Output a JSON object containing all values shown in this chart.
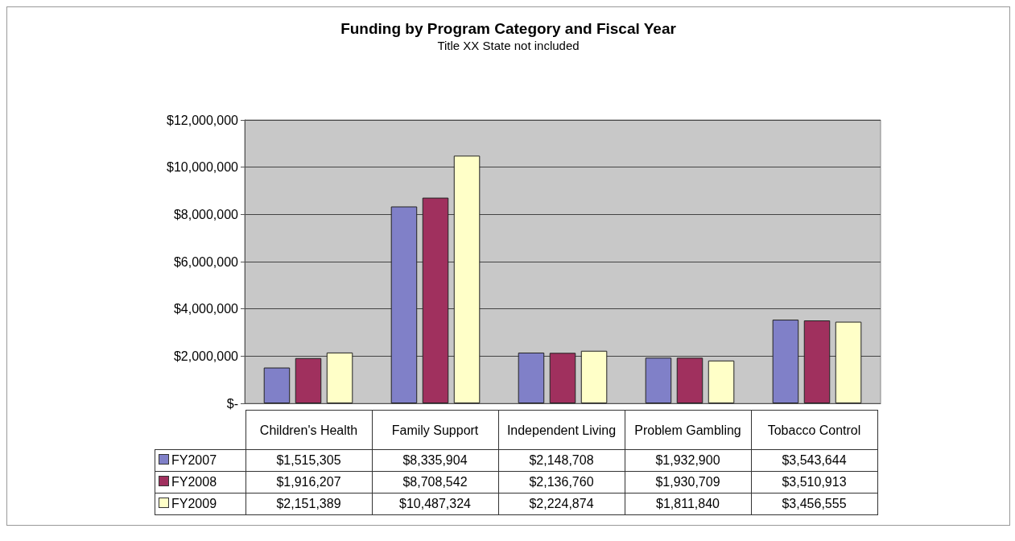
{
  "chart_data": {
    "type": "bar",
    "title": "Funding by Program Category and Fiscal Year",
    "subtitle": "Title XX State not included",
    "categories": [
      "Children's Health",
      "Family Support",
      "Independent Living",
      "Problem Gambling",
      "Tobacco Control"
    ],
    "series": [
      {
        "name": "FY2007",
        "color": "#8080c8",
        "values": [
          1515305,
          8335904,
          2148708,
          1932900,
          3543644
        ],
        "value_labels": [
          "$1,515,305",
          "$8,335,904",
          "$2,148,708",
          "$1,932,900",
          "$3,543,644"
        ]
      },
      {
        "name": "FY2008",
        "color": "#a0305e",
        "values": [
          1916207,
          8708542,
          2136760,
          1930709,
          3510913
        ],
        "value_labels": [
          "$1,916,207",
          "$8,708,542",
          "$2,136,760",
          "$1,930,709",
          "$3,510,913"
        ]
      },
      {
        "name": "FY2009",
        "color": "#ffffc8",
        "values": [
          2151389,
          10487324,
          2224874,
          1811840,
          3456555
        ],
        "value_labels": [
          "$2,151,389",
          "$10,487,324",
          "$2,224,874",
          "$1,811,840",
          "$3,456,555"
        ]
      }
    ],
    "ylim": [
      0,
      12000000
    ],
    "yticks": [
      {
        "value": 0,
        "label": "$-"
      },
      {
        "value": 2000000,
        "label": "$2,000,000"
      },
      {
        "value": 4000000,
        "label": "$4,000,000"
      },
      {
        "value": 6000000,
        "label": "$6,000,000"
      },
      {
        "value": 8000000,
        "label": "$8,000,000"
      },
      {
        "value": 10000000,
        "label": "$10,000,000"
      },
      {
        "value": 12000000,
        "label": "$12,000,000"
      }
    ],
    "grid": "y",
    "legend": "bottom"
  }
}
